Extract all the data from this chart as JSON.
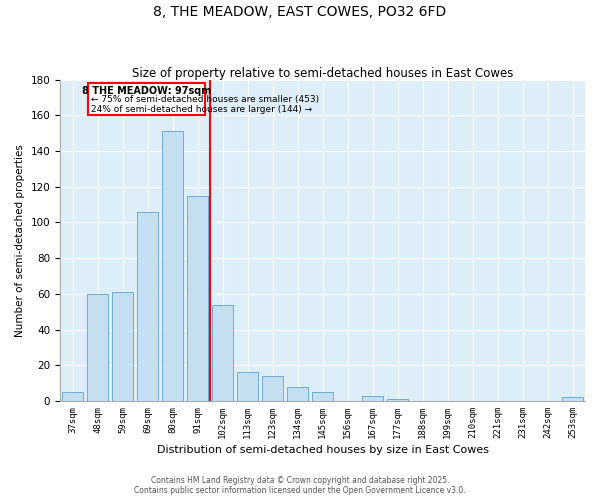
{
  "title": "8, THE MEADOW, EAST COWES, PO32 6FD",
  "subtitle": "Size of property relative to semi-detached houses in East Cowes",
  "xlabel": "Distribution of semi-detached houses by size in East Cowes",
  "ylabel": "Number of semi-detached properties",
  "bar_labels": [
    "37sqm",
    "48sqm",
    "59sqm",
    "69sqm",
    "80sqm",
    "91sqm",
    "102sqm",
    "113sqm",
    "123sqm",
    "134sqm",
    "145sqm",
    "156sqm",
    "167sqm",
    "177sqm",
    "188sqm",
    "199sqm",
    "210sqm",
    "221sqm",
    "231sqm",
    "242sqm",
    "253sqm"
  ],
  "bar_values": [
    5,
    60,
    61,
    106,
    151,
    115,
    54,
    16,
    14,
    8,
    5,
    0,
    3,
    1,
    0,
    0,
    0,
    0,
    0,
    0,
    2
  ],
  "bar_color": "#c5dff0",
  "bar_edge_color": "#6baed6",
  "vline_x": 5.5,
  "vline_color": "red",
  "annotation_title": "8 THE MEADOW: 97sqm",
  "annotation_line1": "← 75% of semi-detached houses are smaller (453)",
  "annotation_line2": "24% of semi-detached houses are larger (144) →",
  "ylim": [
    0,
    180
  ],
  "yticks": [
    0,
    20,
    40,
    60,
    80,
    100,
    120,
    140,
    160,
    180
  ],
  "footnote1": "Contains HM Land Registry data © Crown copyright and database right 2025.",
  "footnote2": "Contains public sector information licensed under the Open Government Licence v3.0.",
  "bg_color": "#deeef8",
  "title_fontsize": 10,
  "subtitle_fontsize": 8.5
}
